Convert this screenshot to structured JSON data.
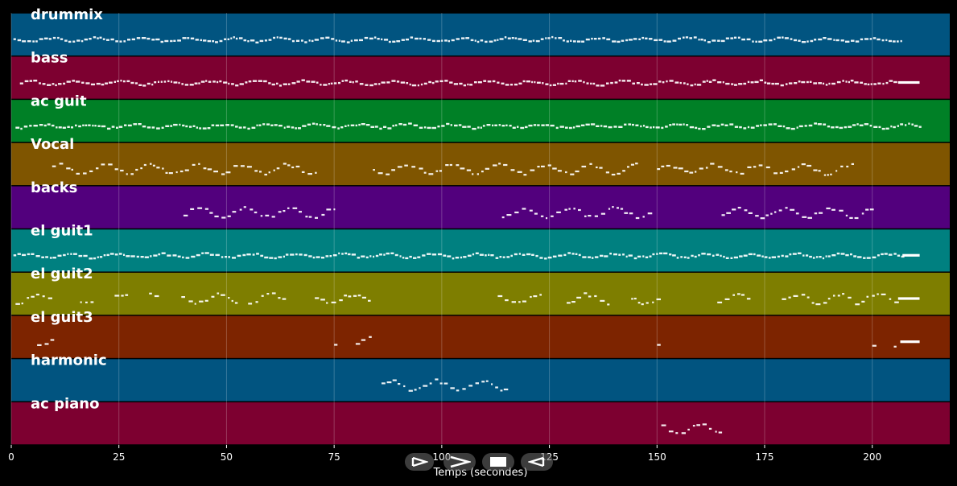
{
  "chart_data": {
    "type": "piano-roll",
    "xlabel": "Temps (secondes)",
    "xlim": [
      0,
      218
    ],
    "xticks": [
      0,
      25,
      50,
      75,
      100,
      125,
      150,
      175,
      200
    ],
    "grid": true,
    "tracks": [
      {
        "name": "drummix",
        "color": "#015480",
        "segments": [
          [
            0.5,
            207,
            "dense"
          ]
        ],
        "blocks": []
      },
      {
        "name": "bass",
        "color": "#7d0030",
        "segments": [
          [
            2,
            206,
            "dense"
          ]
        ],
        "blocks": [
          [
            206,
            211
          ]
        ]
      },
      {
        "name": "ac guit",
        "color": "#008026",
        "segments": [
          [
            1,
            211,
            "dense"
          ]
        ],
        "blocks": []
      },
      {
        "name": "Vocal",
        "color": "#7f5500",
        "segments": [
          [
            9.5,
            71,
            "phrase"
          ],
          [
            84,
            145,
            "phrase"
          ],
          [
            150,
            195.5,
            "phrase"
          ]
        ],
        "blocks": []
      },
      {
        "name": "backs",
        "color": "#52007d",
        "segments": [
          [
            40,
            75,
            "phrase"
          ],
          [
            114,
            149,
            "phrase"
          ],
          [
            165,
            200,
            "phrase"
          ]
        ],
        "blocks": []
      },
      {
        "name": "el guit1",
        "color": "#008080",
        "segments": [
          [
            0.5,
            207,
            "dense"
          ]
        ],
        "blocks": [
          [
            207,
            211
          ]
        ]
      },
      {
        "name": "el guit2",
        "color": "#7e7e00",
        "segments": [
          [
            1,
            9.5,
            "phrase"
          ],
          [
            16,
            19,
            "phrase"
          ],
          [
            24,
            27,
            "phrase"
          ],
          [
            32,
            34,
            "phrase"
          ],
          [
            39.5,
            52,
            "phrase"
          ],
          [
            55,
            64,
            "phrase"
          ],
          [
            70.5,
            84,
            "phrase"
          ],
          [
            113,
            124,
            "phrase"
          ],
          [
            129,
            139,
            "phrase"
          ],
          [
            144,
            150,
            "phrase"
          ],
          [
            164,
            171,
            "phrase"
          ],
          [
            179,
            195.5,
            "phrase"
          ],
          [
            196,
            206,
            "phrase"
          ]
        ],
        "blocks": [
          [
            206,
            211
          ]
        ]
      },
      {
        "name": "el guit3",
        "color": "#7d2400",
        "segments": [
          [
            6,
            9.5,
            "phrase"
          ],
          [
            75,
            76,
            "phrase"
          ],
          [
            80,
            83.5,
            "phrase"
          ],
          [
            150,
            151,
            "phrase"
          ],
          [
            200,
            201,
            "phrase"
          ],
          [
            205,
            206,
            "phrase"
          ]
        ],
        "blocks": [
          [
            206.5,
            211
          ]
        ]
      },
      {
        "name": "harmonic",
        "color": "#015480",
        "segments": [
          [
            86,
            114.5,
            "phrase"
          ]
        ],
        "blocks": []
      },
      {
        "name": "ac piano",
        "color": "#7d0030",
        "segments": [
          [
            151,
            165,
            "phrase"
          ]
        ],
        "blocks": []
      }
    ]
  },
  "controls": {
    "items": [
      {
        "name": "rewind",
        "icon": "rewind-icon"
      },
      {
        "name": "forward",
        "icon": "fast-forward-icon"
      },
      {
        "name": "stop",
        "icon": "stop-icon"
      },
      {
        "name": "back",
        "icon": "play-reverse-icon"
      }
    ]
  }
}
